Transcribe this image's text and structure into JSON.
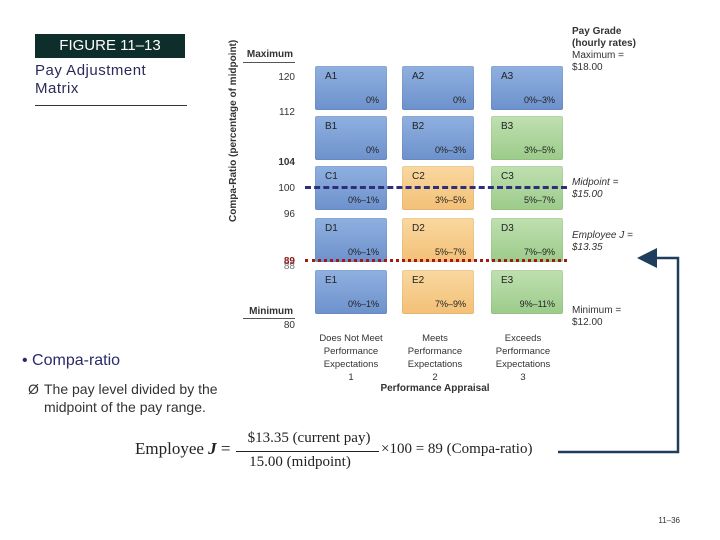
{
  "figure": {
    "number_label": "FIGURE 11–13",
    "title": "Pay Adjustment Matrix"
  },
  "axis": {
    "ylabel": "Compa-Ratio (percentage of midpoint)",
    "maximum_label": "Maximum",
    "minimum_label": "Minimum",
    "ticks": [
      "120",
      "112",
      "104",
      "100",
      "96",
      "88",
      "89",
      "80"
    ],
    "xlabel": "Performance Appraisal"
  },
  "pay_grade": {
    "title_line1": "Pay Grade",
    "title_line2": "(hourly rates)",
    "maximum_line1": "Maximum =",
    "maximum_line2": "$18.00",
    "midpoint_line1": "Midpoint =",
    "midpoint_line2": "$15.00",
    "employee_line1": "Employee J =",
    "employee_line2": "$13.35",
    "minimum_line1": "Minimum =",
    "minimum_line2": "$12.00"
  },
  "matrix": {
    "rows": [
      [
        {
          "id": "A1",
          "pct": "0%",
          "color": "blue"
        },
        {
          "id": "A2",
          "pct": "0%",
          "color": "blue"
        },
        {
          "id": "A3",
          "pct": "0%–3%",
          "color": "blue"
        }
      ],
      [
        {
          "id": "B1",
          "pct": "0%",
          "color": "blue"
        },
        {
          "id": "B2",
          "pct": "0%–3%",
          "color": "blue"
        },
        {
          "id": "B3",
          "pct": "3%–5%",
          "color": "green"
        }
      ],
      [
        {
          "id": "C1",
          "pct": "0%–1%",
          "color": "blue"
        },
        {
          "id": "C2",
          "pct": "3%–5%",
          "color": "orange"
        },
        {
          "id": "C3",
          "pct": "5%–7%",
          "color": "green"
        }
      ],
      [
        {
          "id": "D1",
          "pct": "0%–1%",
          "color": "blue"
        },
        {
          "id": "D2",
          "pct": "5%–7%",
          "color": "orange"
        },
        {
          "id": "D3",
          "pct": "7%–9%",
          "color": "green"
        }
      ],
      [
        {
          "id": "E1",
          "pct": "0%–1%",
          "color": "blue"
        },
        {
          "id": "E2",
          "pct": "7%–9%",
          "color": "orange"
        },
        {
          "id": "E3",
          "pct": "9%–11%",
          "color": "green"
        }
      ]
    ],
    "columns": [
      {
        "line1": "Does Not Meet",
        "line2": "Performance",
        "line3": "Expectations",
        "num": "1"
      },
      {
        "line1": "Meets",
        "line2": "Performance",
        "line3": "Expectations",
        "num": "2"
      },
      {
        "line1": "Exceeds",
        "line2": "Performance",
        "line3": "Expectations",
        "num": "3"
      }
    ]
  },
  "colors": {
    "midpoint_line": "#2e2e7a",
    "employee_line": "#a01818",
    "arrow": "#1f3d5c"
  },
  "bullets": {
    "main": "Compa-ratio",
    "sub": "The pay level divided by the midpoint of the pay range."
  },
  "formula": {
    "lhs": "Employee",
    "var": "J",
    "eq": "=",
    "numerator": "$13.35 (current pay)",
    "denominator": "15.00 (midpoint)",
    "rhs": "×100 = 89 (Compa-ratio)"
  },
  "page_number": "11–36"
}
